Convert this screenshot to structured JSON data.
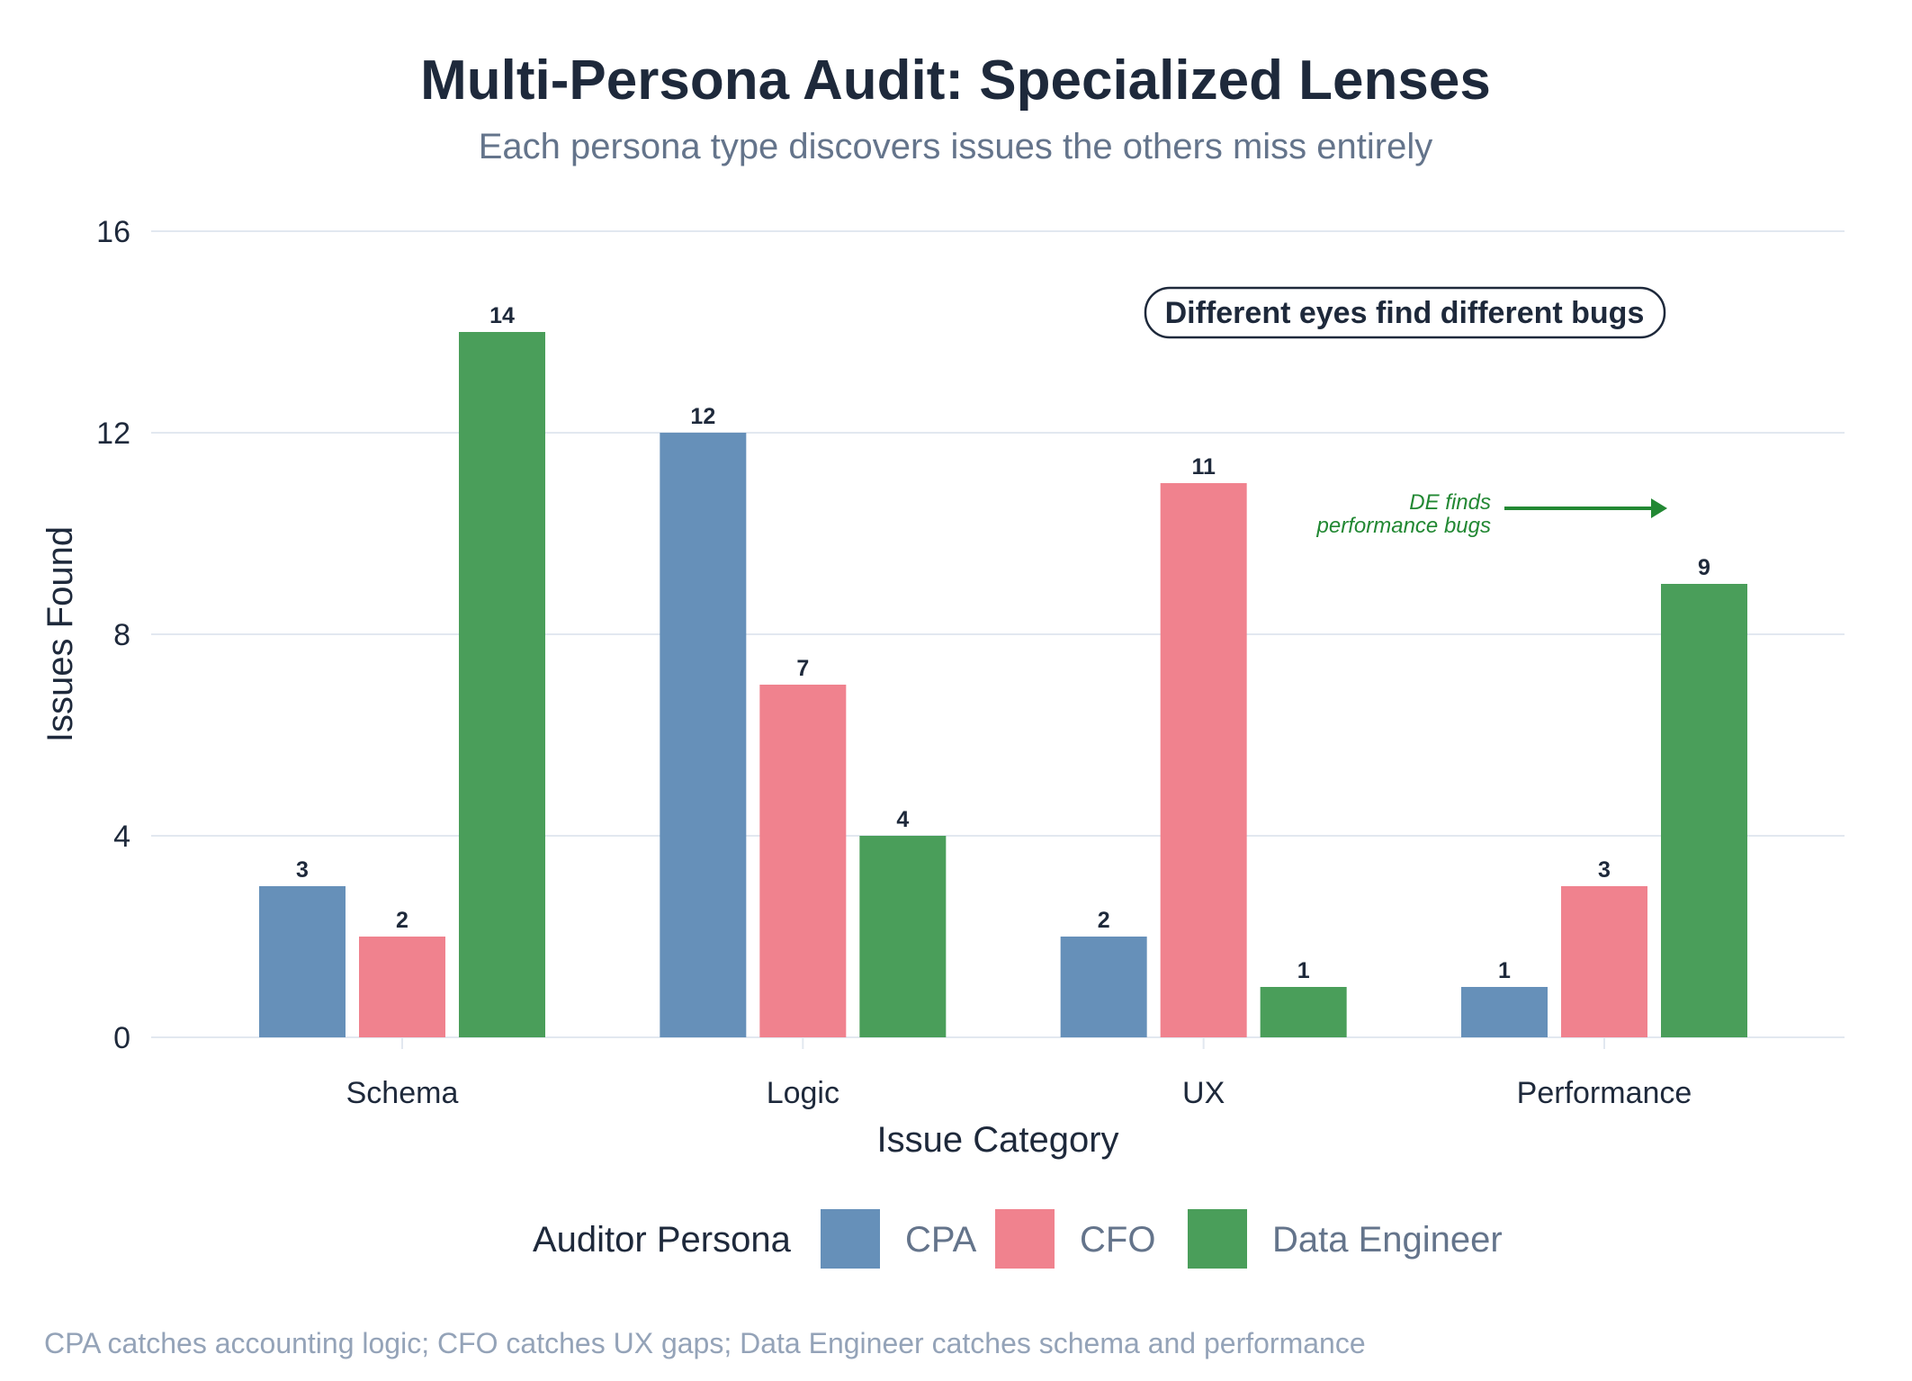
{
  "chart_data": {
    "type": "bar",
    "title": "Multi-Persona Audit: Specialized Lenses",
    "subtitle": "Each persona type discovers issues the others miss entirely",
    "xlabel": "Issue Category",
    "ylabel": "Issues Found",
    "categories": [
      "Schema",
      "Logic",
      "UX",
      "Performance"
    ],
    "series": [
      {
        "name": "CPA",
        "color": "#6690b9",
        "values": [
          3,
          12,
          2,
          1
        ]
      },
      {
        "name": "CFO",
        "color": "#f0828e",
        "values": [
          2,
          7,
          11,
          3
        ]
      },
      {
        "name": "Data Engineer",
        "color": "#4a9e5a",
        "values": [
          14,
          4,
          1,
          9
        ]
      }
    ],
    "ylim": [
      0,
      16
    ],
    "yticks": [
      0,
      4,
      8,
      12,
      16
    ],
    "ytick_labels": [
      "0",
      "4",
      "8",
      "12",
      "16"
    ],
    "grid": true,
    "legend": {
      "title": "Auditor Persona",
      "position": "bottom",
      "entries": [
        "CPA",
        "CFO",
        "Data Engineer"
      ]
    },
    "annotations": [
      {
        "text": "Different eyes find different bugs",
        "style": "boxed-bold",
        "color": "#1e293b",
        "position": "top-right"
      },
      {
        "lines": [
          "DE finds",
          "performance bugs"
        ],
        "style": "italic-with-arrow",
        "color": "#228833",
        "points_to": "Performance / Data Engineer"
      }
    ],
    "caption": "CPA catches accounting logic; CFO catches UX gaps; Data Engineer catches schema and performance"
  }
}
